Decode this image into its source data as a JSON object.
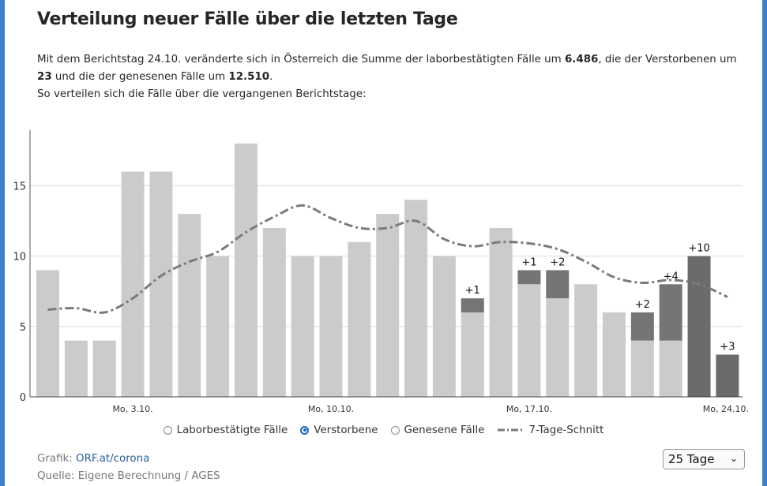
{
  "title": "Verteilung neuer Fälle über die letzten Tage",
  "description": {
    "p1": "Mit dem Berichtstag 24.10. veränderte sich in Österreich die Summe der laborbestätigten Fälle um ",
    "v1": "6.486",
    "p2": ", die der Verstorbenen um ",
    "v2": "23",
    "p3": " und die der genesenen Fälle um ",
    "v3": "12.510",
    "p4": ".",
    "line2": "So verteilen sich die Fälle über die vergangenen Berichtstage:"
  },
  "legend": {
    "items": [
      {
        "label": "Laborbestätigte Fälle",
        "checked": false
      },
      {
        "label": "Verstorbene",
        "checked": true
      },
      {
        "label": "Genesene Fälle",
        "checked": false
      },
      {
        "label": "7-Tage-Schnitt",
        "checked": false
      }
    ]
  },
  "footer": {
    "grafik_label": "Grafik: ",
    "grafik_link": "ORF.at/corona",
    "quelle": "Quelle: Eigene Berechnung / AGES"
  },
  "select": {
    "value": "25 Tage"
  },
  "chart_data": {
    "type": "bar",
    "stacked": true,
    "ylim": [
      0,
      19
    ],
    "yticks": [
      0,
      5,
      10,
      15
    ],
    "grid": true,
    "x_tick_labels": [
      {
        "index": 3,
        "label": "Mo, 3.10."
      },
      {
        "index": 10,
        "label": "Mo, 10.10."
      },
      {
        "index": 17,
        "label": "Mo, 17.10."
      },
      {
        "index": 24,
        "label": "Mo, 24.10."
      }
    ],
    "series": [
      {
        "values": [
          9,
          4,
          4,
          16,
          16,
          13,
          10,
          18,
          12,
          10,
          10,
          11,
          13,
          14,
          10,
          6,
          12,
          8,
          7,
          8,
          6,
          4,
          4,
          0,
          0
        ]
      },
      {
        "values": [
          0,
          0,
          0,
          0,
          0,
          0,
          0,
          0,
          0,
          0,
          0,
          0,
          0,
          0,
          0,
          1,
          0,
          1,
          2,
          0,
          0,
          2,
          4,
          10,
          3
        ]
      }
    ],
    "increment_labels": [
      "",
      "",
      "",
      "",
      "",
      "",
      "",
      "",
      "",
      "",
      "",
      "",
      "",
      "",
      "",
      "+1",
      "",
      "+1",
      "+2",
      "",
      "",
      "+2",
      "+4",
      "+10",
      "+3"
    ],
    "moving_average": [
      6.2,
      6.3,
      6.0,
      7.0,
      8.6,
      9.6,
      10.3,
      11.7,
      12.8,
      13.6,
      12.7,
      12.0,
      12.0,
      12.5,
      11.2,
      10.7,
      11.0,
      10.9,
      10.5,
      9.6,
      8.5,
      8.1,
      8.3,
      8.0,
      7.1
    ],
    "colors": {
      "base": "#cbcbcb",
      "today_base": "#d3d3d3",
      "new": "#757575",
      "latest": "#6b6b6b",
      "avg": "#7a7a7a"
    }
  }
}
